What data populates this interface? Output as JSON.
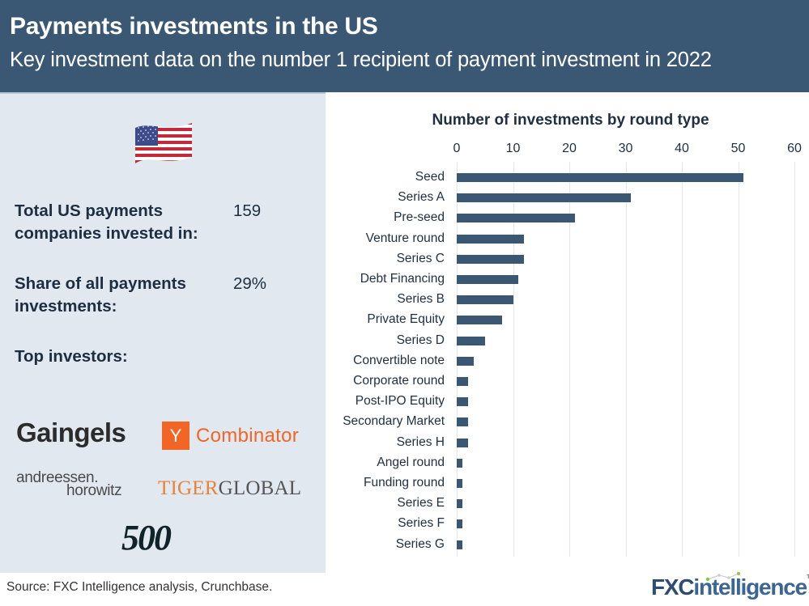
{
  "header": {
    "title": "Payments investments in the US",
    "subtitle": "Key investment data on the number 1 recipient of payment investment in 2022"
  },
  "panel": {
    "flag_icon": "us-flag",
    "stats": [
      {
        "label_line1": "Total US payments",
        "label_line2": "companies invested in:",
        "value": "159"
      },
      {
        "label_line1": "Share of all payments",
        "label_line2": "investments:",
        "value": "29%"
      }
    ],
    "top_investors_label": "Top investors:",
    "investors": {
      "gaingels": "Gaingels",
      "yc_mark": "Y",
      "yc_text": "Combinator",
      "a16z_line1": "andreessen.",
      "a16z_line2": "horowitz",
      "tiger_part1": "TIGER",
      "tiger_part2": "GLOBAL",
      "five_hundred": "500"
    }
  },
  "chart_data": {
    "type": "bar",
    "orientation": "horizontal",
    "title": "Number of investments by round type",
    "xlabel": "",
    "ylabel": "",
    "xlim": [
      0,
      60
    ],
    "xticks": [
      0,
      10,
      20,
      30,
      40,
      50,
      60
    ],
    "grid": true,
    "legend": null,
    "color": "#3a5774",
    "categories": [
      "Seed",
      "Series A",
      "Pre-seed",
      "Venture round",
      "Series C",
      "Debt Financing",
      "Series B",
      "Private Equity",
      "Series D",
      "Convertible note",
      "Corporate round",
      "Post-IPO Equity",
      "Secondary Market",
      "Series H",
      "Angel round",
      "Funding round",
      "Series E",
      "Series F",
      "Series G"
    ],
    "values": [
      51,
      31,
      21,
      12,
      12,
      11,
      10,
      8,
      5,
      3,
      2,
      2,
      2,
      2,
      1,
      1,
      1,
      1,
      1
    ]
  },
  "footer": {
    "source": "Source: FXC Intelligence analysis, Crunchbase.",
    "brand_part1": "FXC",
    "brand_part2": "intelligence",
    "brand_tm": "TM"
  },
  "colors": {
    "header_bg": "#3a5774",
    "panel_bg": "#e1e8ef",
    "bar": "#3a5774",
    "yc_orange": "#f26625",
    "tiger_orange": "#e8823a"
  }
}
